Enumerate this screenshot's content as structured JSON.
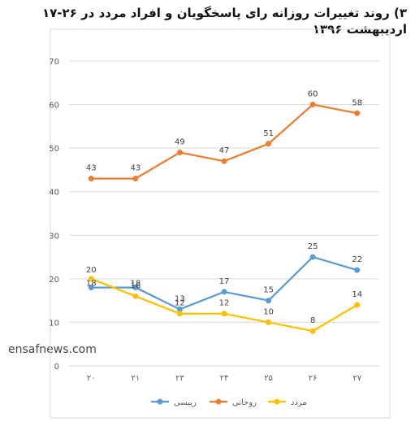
{
  "title": {
    "line1": "۳) روند تغییرات روزانه رای پاسخگویان و افراد مردد در ۲۶-۱۷",
    "line2": "اردیبهشت ۱۳۹۶"
  },
  "watermark": "ensafnews.com",
  "chart_data": {
    "type": "line",
    "categories": [
      "۲۰",
      "۲۱",
      "۲۳",
      "۲۴",
      "۲۵",
      "۲۶",
      "۲۷"
    ],
    "ylim": [
      0,
      70
    ],
    "yticks": [
      0,
      10,
      20,
      30,
      40,
      50,
      60,
      70
    ],
    "grid": true,
    "legend_position": "bottom",
    "series": [
      {
        "name": "رییسی",
        "color": "#5B9BD5",
        "values": [
          18,
          18,
          13,
          17,
          15,
          25,
          22
        ]
      },
      {
        "name": "روحانی",
        "color": "#ED7D31",
        "values": [
          43,
          43,
          49,
          47,
          51,
          60,
          58
        ]
      },
      {
        "name": "مردد",
        "color": "#FFC000",
        "values": [
          20,
          16,
          12,
          12,
          10,
          8,
          14
        ]
      }
    ]
  }
}
